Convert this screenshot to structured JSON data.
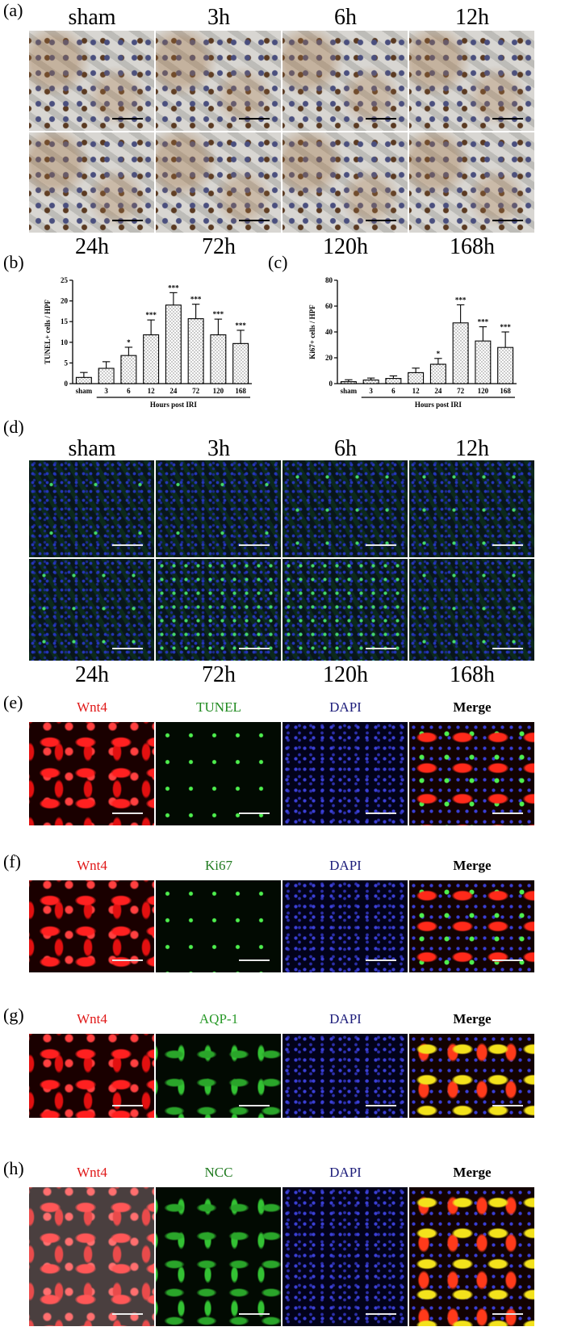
{
  "panels": {
    "a": "(a)",
    "b": "(b)",
    "c": "(c)",
    "d": "(d)",
    "e": "(e)",
    "f": "(f)",
    "g": "(g)",
    "h": "(h)"
  },
  "panel_a": {
    "top_labels": [
      "sham",
      "3h",
      "6h",
      "12h"
    ],
    "bottom_labels": [
      "24h",
      "72h",
      "120h",
      "168h"
    ]
  },
  "panel_d": {
    "top_labels": [
      "sham",
      "3h",
      "6h",
      "12h"
    ],
    "bottom_labels": [
      "24h",
      "72h",
      "120h",
      "168h"
    ]
  },
  "stain_rows": {
    "e": [
      "Wnt4",
      "TUNEL",
      "DAPI",
      "Merge"
    ],
    "f": [
      "Wnt4",
      "Ki67",
      "DAPI",
      "Merge"
    ],
    "g": [
      "Wnt4",
      "AQP-1",
      "DAPI",
      "Merge"
    ],
    "h": [
      "Wnt4",
      "NCC",
      "DAPI",
      "Merge"
    ]
  },
  "stain_colors": {
    "Wnt4": "#e01818",
    "TUNEL": "#1f8a1f",
    "Ki67": "#1f7a1f",
    "AQP-1": "#2a9a2a",
    "NCC": "#1f7a1f",
    "DAPI": "#1c1c7a",
    "Merge": "#000000"
  },
  "chart_data": [
    {
      "type": "bar",
      "categories": [
        "sham",
        "3",
        "6",
        "12",
        "24",
        "72",
        "120",
        "168"
      ],
      "values": [
        1.5,
        3.7,
        6.8,
        11.8,
        19.0,
        15.7,
        11.8,
        9.7
      ],
      "errors": [
        1.2,
        1.6,
        2.0,
        3.6,
        3.0,
        3.5,
        3.8,
        3.2
      ],
      "significance": [
        "",
        "",
        "*",
        "***",
        "***",
        "***",
        "***",
        "***"
      ],
      "ylabel": "TUNEL+ cells / HPF",
      "xlabel": "Hours post IRI",
      "ylim": [
        0,
        25
      ],
      "yticks": [
        0,
        5,
        10,
        15,
        20,
        25
      ]
    },
    {
      "type": "bar",
      "categories": [
        "sham",
        "3",
        "6",
        "12",
        "24",
        "72",
        "120",
        "168"
      ],
      "values": [
        1.5,
        2.8,
        4.0,
        8.5,
        15.0,
        47.0,
        33.0,
        28.0
      ],
      "errors": [
        1.5,
        1.5,
        2.0,
        3.5,
        4.5,
        14.0,
        11.0,
        12.0
      ],
      "significance": [
        "",
        "",
        "",
        "",
        "*",
        "***",
        "***",
        "***"
      ],
      "ylabel": "Ki67+ cells / HPF",
      "xlabel": "Hours post IRI",
      "ylim": [
        0,
        80
      ],
      "yticks": [
        0,
        20,
        40,
        60,
        80
      ]
    }
  ]
}
